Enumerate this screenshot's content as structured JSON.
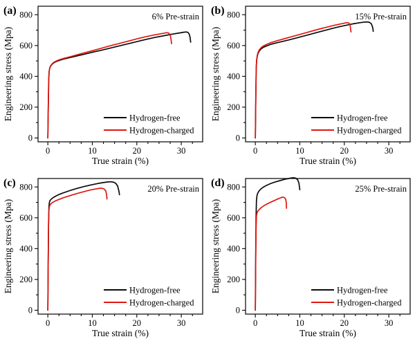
{
  "figure": {
    "background": "#ffffff",
    "frame_color": "#000000",
    "black_series_color": "#0a0a0a",
    "red_series_color": "#e0160f"
  },
  "chart_data": [
    {
      "id": "a",
      "panel_label": "(a)",
      "type": "line",
      "title": "6% Pre-strain",
      "xlabel": "True strain (%)",
      "ylabel": "Engineering stress (Mpa)",
      "xlim": [
        -2.2,
        34.8
      ],
      "ylim": [
        -25,
        855
      ],
      "xticks": [
        0,
        10,
        20,
        30
      ],
      "yticks": [
        0,
        200,
        400,
        600,
        800
      ],
      "x_minor_step": 2.5,
      "y_minor_step": 100,
      "grid": false,
      "legend_position": "bottom-right",
      "series": [
        {
          "name": "Hydrogen-free",
          "color": "#0a0a0a",
          "points": [
            [
              0,
              0
            ],
            [
              0.1,
              200
            ],
            [
              0.2,
              380
            ],
            [
              0.3,
              432
            ],
            [
              0.45,
              455
            ],
            [
              0.6,
              465
            ],
            [
              0.9,
              477
            ],
            [
              1.3,
              487
            ],
            [
              1.8,
              495
            ],
            [
              2.5,
              503
            ],
            [
              3.5,
              512
            ],
            [
              5,
              522
            ],
            [
              6.5,
              532
            ],
            [
              8,
              542
            ],
            [
              10,
              556
            ],
            [
              12,
              569
            ],
            [
              14,
              583
            ],
            [
              16,
              597
            ],
            [
              18,
              611
            ],
            [
              20,
              625
            ],
            [
              22,
              639
            ],
            [
              24,
              652
            ],
            [
              26,
              663
            ],
            [
              28,
              674
            ],
            [
              29.5,
              681
            ],
            [
              30.5,
              686
            ],
            [
              31.1,
              688
            ],
            [
              31.5,
              685
            ],
            [
              31.8,
              673
            ],
            [
              32.0,
              648
            ],
            [
              32.1,
              622
            ]
          ]
        },
        {
          "name": "Hydrogen-charged",
          "color": "#e0160f",
          "points": [
            [
              0,
              0
            ],
            [
              0.1,
              200
            ],
            [
              0.2,
              380
            ],
            [
              0.3,
              433
            ],
            [
              0.45,
              456
            ],
            [
              0.6,
              467
            ],
            [
              0.9,
              479
            ],
            [
              1.3,
              490
            ],
            [
              1.8,
              498
            ],
            [
              2.5,
              507
            ],
            [
              3.5,
              516
            ],
            [
              5,
              527
            ],
            [
              6.5,
              539
            ],
            [
              8,
              551
            ],
            [
              10,
              566
            ],
            [
              12,
              582
            ],
            [
              14,
              598
            ],
            [
              16,
              613
            ],
            [
              18,
              628
            ],
            [
              20,
              643
            ],
            [
              22,
              657
            ],
            [
              24,
              669
            ],
            [
              25.5,
              677
            ],
            [
              26.5,
              682
            ],
            [
              26.9,
              683
            ],
            [
              27.2,
              680
            ],
            [
              27.5,
              667
            ],
            [
              27.7,
              640
            ],
            [
              27.8,
              612
            ]
          ]
        }
      ]
    },
    {
      "id": "b",
      "panel_label": "(b)",
      "type": "line",
      "title": "15% Pre-strain",
      "xlabel": "True strain (%)",
      "ylabel": "Engineering stress (Mpa)",
      "xlim": [
        -2.2,
        34.8
      ],
      "ylim": [
        -25,
        855
      ],
      "xticks": [
        0,
        10,
        20,
        30
      ],
      "yticks": [
        0,
        200,
        400,
        600,
        800
      ],
      "x_minor_step": 2.5,
      "y_minor_step": 100,
      "grid": false,
      "legend_position": "bottom-right",
      "series": [
        {
          "name": "Hydrogen-free",
          "color": "#0a0a0a",
          "points": [
            [
              0,
              0
            ],
            [
              0.1,
              250
            ],
            [
              0.2,
              450
            ],
            [
              0.3,
              505
            ],
            [
              0.45,
              532
            ],
            [
              0.6,
              548
            ],
            [
              0.9,
              565
            ],
            [
              1.3,
              578
            ],
            [
              1.8,
              588
            ],
            [
              2.5,
              597
            ],
            [
              3.5,
              608
            ],
            [
              5,
              619
            ],
            [
              6.5,
              629
            ],
            [
              8,
              640
            ],
            [
              10,
              655
            ],
            [
              12,
              670
            ],
            [
              14,
              686
            ],
            [
              16,
              701
            ],
            [
              18,
              716
            ],
            [
              20,
              729
            ],
            [
              22,
              741
            ],
            [
              23.5,
              748
            ],
            [
              24.5,
              752
            ],
            [
              25.2,
              753
            ],
            [
              25.7,
              750
            ],
            [
              26.1,
              740
            ],
            [
              26.4,
              715
            ],
            [
              26.5,
              692
            ]
          ]
        },
        {
          "name": "Hydrogen-charged",
          "color": "#e0160f",
          "points": [
            [
              0,
              0
            ],
            [
              0.1,
              250
            ],
            [
              0.2,
              455
            ],
            [
              0.3,
              510
            ],
            [
              0.45,
              538
            ],
            [
              0.6,
              554
            ],
            [
              0.9,
              572
            ],
            [
              1.3,
              586
            ],
            [
              1.8,
              597
            ],
            [
              2.5,
              607
            ],
            [
              3.5,
              619
            ],
            [
              5,
              632
            ],
            [
              6.5,
              644
            ],
            [
              8,
              656
            ],
            [
              10,
              672
            ],
            [
              12,
              688
            ],
            [
              14,
              704
            ],
            [
              16,
              719
            ],
            [
              18,
              733
            ],
            [
              19.5,
              742
            ],
            [
              20.3,
              747
            ],
            [
              20.8,
              748
            ],
            [
              21.1,
              744
            ],
            [
              21.3,
              733
            ],
            [
              21.5,
              688
            ]
          ]
        }
      ]
    },
    {
      "id": "c",
      "panel_label": "(c)",
      "type": "line",
      "title": "20% Pre-strain",
      "xlabel": "True strain (%)",
      "ylabel": "Engineering stress (Mpa)",
      "xlim": [
        -2.2,
        34.8
      ],
      "ylim": [
        -25,
        855
      ],
      "xticks": [
        0,
        10,
        20,
        30
      ],
      "yticks": [
        0,
        200,
        400,
        600,
        800
      ],
      "x_minor_step": 2.5,
      "y_minor_step": 100,
      "grid": false,
      "legend_position": "bottom-right",
      "series": [
        {
          "name": "Hydrogen-free",
          "color": "#0a0a0a",
          "points": [
            [
              0,
              0
            ],
            [
              0.08,
              300
            ],
            [
              0.16,
              560
            ],
            [
              0.25,
              672
            ],
            [
              0.35,
              700
            ],
            [
              0.5,
              712
            ],
            [
              0.8,
              722
            ],
            [
              1.2,
              731
            ],
            [
              1.8,
              741
            ],
            [
              2.5,
              751
            ],
            [
              3.5,
              762
            ],
            [
              5,
              777
            ],
            [
              6.5,
              790
            ],
            [
              8,
              802
            ],
            [
              9.5,
              812
            ],
            [
              11,
              821
            ],
            [
              12.3,
              828
            ],
            [
              13.3,
              832
            ],
            [
              14.1,
              834
            ],
            [
              14.8,
              831
            ],
            [
              15.3,
              823
            ],
            [
              15.7,
              805
            ],
            [
              16.0,
              770
            ],
            [
              16.1,
              750
            ]
          ]
        },
        {
          "name": "Hydrogen-charged",
          "color": "#e0160f",
          "points": [
            [
              0,
              0
            ],
            [
              0.08,
              300
            ],
            [
              0.16,
              550
            ],
            [
              0.25,
              648
            ],
            [
              0.35,
              672
            ],
            [
              0.5,
              684
            ],
            [
              0.8,
              694
            ],
            [
              1.2,
              702
            ],
            [
              1.8,
              711
            ],
            [
              2.5,
              719
            ],
            [
              3.5,
              730
            ],
            [
              5,
              744
            ],
            [
              6.5,
              757
            ],
            [
              8,
              769
            ],
            [
              9.5,
              780
            ],
            [
              10.7,
              787
            ],
            [
              11.5,
              791
            ],
            [
              12.1,
              792
            ],
            [
              12.6,
              788
            ],
            [
              13.0,
              776
            ],
            [
              13.2,
              752
            ],
            [
              13.3,
              722
            ]
          ]
        }
      ]
    },
    {
      "id": "d",
      "panel_label": "(d)",
      "type": "line",
      "title": "25% Pre-strain",
      "xlabel": "True strain (%)",
      "ylabel": "Engineering stress (Mpa)",
      "xlim": [
        -2.2,
        34.8
      ],
      "ylim": [
        -25,
        855
      ],
      "xticks": [
        0,
        10,
        20,
        30
      ],
      "yticks": [
        0,
        200,
        400,
        600,
        800
      ],
      "x_minor_step": 2.5,
      "y_minor_step": 100,
      "grid": false,
      "legend_position": "bottom-right",
      "series": [
        {
          "name": "Hydrogen-free",
          "color": "#0a0a0a",
          "points": [
            [
              0,
              0
            ],
            [
              0.08,
              350
            ],
            [
              0.16,
              600
            ],
            [
              0.25,
              710
            ],
            [
              0.35,
              740
            ],
            [
              0.5,
              757
            ],
            [
              0.8,
              773
            ],
            [
              1.2,
              786
            ],
            [
              1.8,
              799
            ],
            [
              2.5,
              810
            ],
            [
              3.5,
              823
            ],
            [
              4.5,
              833
            ],
            [
              5.5,
              841
            ],
            [
              6.5,
              849
            ],
            [
              7.5,
              855
            ],
            [
              8.2,
              859
            ],
            [
              8.7,
              860
            ],
            [
              9.1,
              857
            ],
            [
              9.5,
              847
            ],
            [
              9.8,
              825
            ],
            [
              10.0,
              782
            ]
          ]
        },
        {
          "name": "Hydrogen-charged",
          "color": "#e0160f",
          "points": [
            [
              0,
              0
            ],
            [
              0.08,
              300
            ],
            [
              0.16,
              520
            ],
            [
              0.25,
              610
            ],
            [
              0.35,
              628
            ],
            [
              0.5,
              640
            ],
            [
              0.8,
              652
            ],
            [
              1.2,
              663
            ],
            [
              1.8,
              676
            ],
            [
              2.5,
              688
            ],
            [
              3.5,
              702
            ],
            [
              4.5,
              715
            ],
            [
              5.2,
              724
            ],
            [
              5.8,
              731
            ],
            [
              6.2,
              734
            ],
            [
              6.5,
              732
            ],
            [
              6.8,
              722
            ],
            [
              6.95,
              700
            ],
            [
              7.0,
              662
            ]
          ]
        }
      ]
    }
  ]
}
